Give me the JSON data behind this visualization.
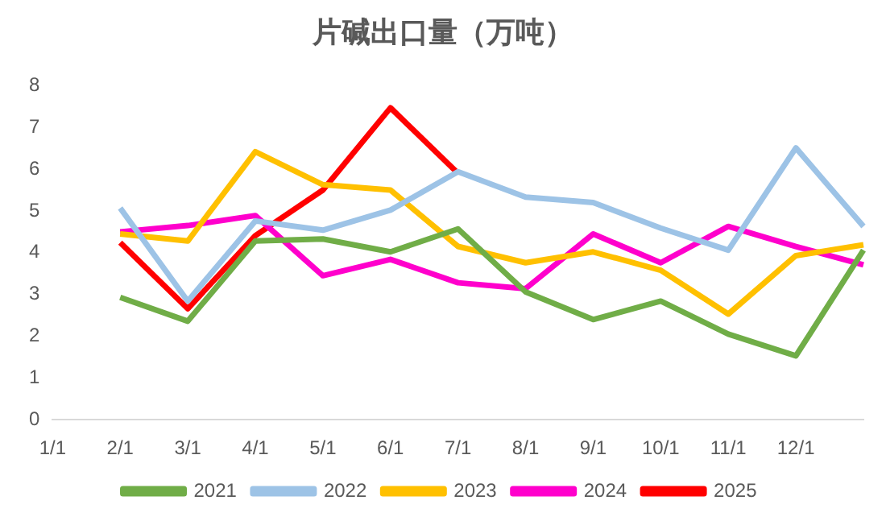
{
  "chart_data": {
    "type": "line",
    "title": "片碱出口量（万吨）",
    "categories": [
      "1/1",
      "2/1",
      "3/1",
      "4/1",
      "5/1",
      "6/1",
      "7/1",
      "8/1",
      "9/1",
      "10/1",
      "11/1",
      "12/1",
      null
    ],
    "ylim": [
      0,
      8
    ],
    "yticks": [
      0,
      1,
      2,
      3,
      4,
      5,
      6,
      7,
      8
    ],
    "grid": false,
    "legend": "bottom",
    "marker": "none",
    "series": [
      {
        "name": "2021",
        "color": "#70ad47",
        "values": [
          null,
          2.93,
          2.36,
          4.28,
          4.33,
          4.02,
          4.57,
          3.06,
          2.4,
          2.84,
          2.05,
          1.53,
          4.06
        ]
      },
      {
        "name": "2022",
        "color": "#9dc3e6",
        "values": [
          null,
          5.07,
          2.84,
          4.76,
          4.54,
          5.02,
          5.94,
          5.33,
          5.2,
          4.59,
          4.06,
          6.51,
          4.63
        ]
      },
      {
        "name": "2023",
        "color": "#ffc000",
        "values": [
          null,
          4.45,
          4.28,
          6.42,
          5.63,
          5.5,
          4.15,
          3.76,
          4.02,
          3.58,
          2.53,
          3.93,
          4.19
        ]
      },
      {
        "name": "2024",
        "color": "#ff00cc",
        "values": [
          null,
          4.5,
          4.65,
          4.89,
          3.45,
          3.84,
          3.28,
          3.14,
          4.45,
          3.76,
          4.63,
          4.15,
          3.71
        ]
      },
      {
        "name": "2025",
        "color": "#ff0000",
        "values": [
          null,
          4.24,
          2.66,
          4.41,
          5.5,
          7.47,
          5.9,
          null,
          null,
          null,
          null,
          null,
          null
        ]
      }
    ]
  }
}
